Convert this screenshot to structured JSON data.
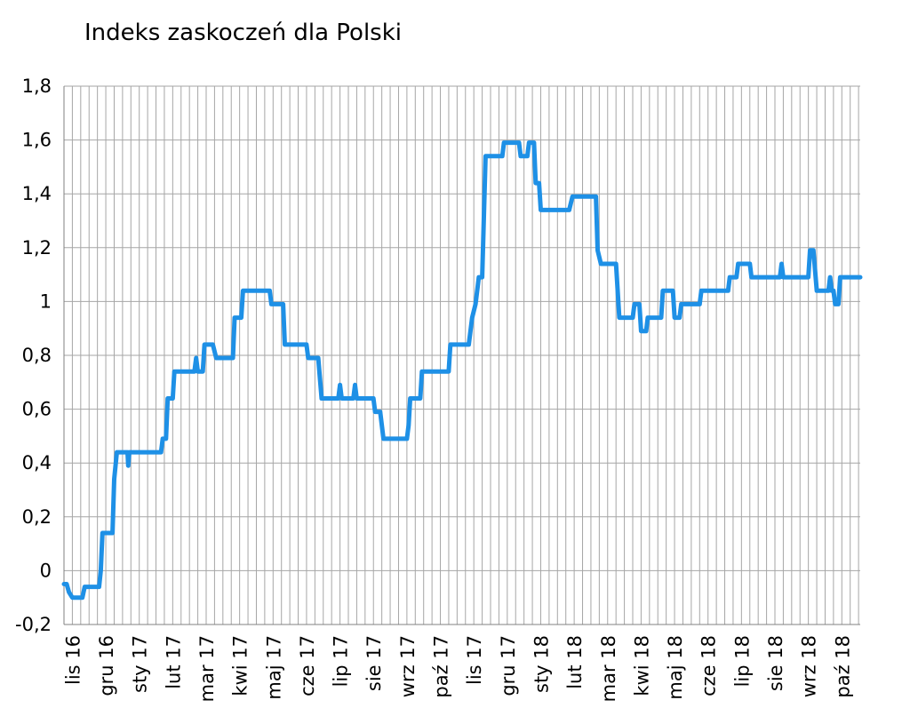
{
  "chart_data": {
    "type": "line",
    "title": "Indeks zaskoczeń dla Polski",
    "xlabel": "",
    "ylabel": "",
    "ylim": [
      -0.2,
      1.8
    ],
    "yticks": [
      -0.2,
      0,
      0.2,
      0.4,
      0.6,
      0.8,
      1,
      1.2,
      1.4,
      1.6,
      1.8
    ],
    "ytick_labels": [
      "-0,2",
      "0",
      "0,2",
      "0,4",
      "0,6",
      "0,8",
      "1",
      "1,2",
      "1,4",
      "1,6",
      "1,8"
    ],
    "x_labels": [
      "lis 16",
      "gru 16",
      "sty 17",
      "lut 17",
      "mar 17",
      "kwi 17",
      "maj 17",
      "cze 17",
      "lip 17",
      "sie 17",
      "wrz 17",
      "paź 17",
      "lis 17",
      "gru 17",
      "sty 18",
      "lut 18",
      "mar 18",
      "kwi 18",
      "maj 18",
      "cze 18",
      "lip 18",
      "sie 18",
      "wrz 18",
      "paź 18"
    ],
    "x_span_months": [
      0,
      23.8
    ],
    "grid": {
      "horizontal": true,
      "vertical": true,
      "vertical_per_month": 4
    },
    "line_color": "#1e90e6",
    "series": [
      {
        "name": "",
        "points": [
          [
            0.0,
            -0.05
          ],
          [
            0.08,
            -0.05
          ],
          [
            0.15,
            -0.08
          ],
          [
            0.25,
            -0.1
          ],
          [
            0.55,
            -0.1
          ],
          [
            0.62,
            -0.06
          ],
          [
            1.05,
            -0.06
          ],
          [
            1.1,
            0.0
          ],
          [
            1.15,
            0.14
          ],
          [
            1.45,
            0.14
          ],
          [
            1.5,
            0.34
          ],
          [
            1.58,
            0.44
          ],
          [
            1.9,
            0.44
          ],
          [
            1.92,
            0.39
          ],
          [
            1.95,
            0.44
          ],
          [
            2.9,
            0.44
          ],
          [
            2.95,
            0.49
          ],
          [
            3.05,
            0.49
          ],
          [
            3.1,
            0.64
          ],
          [
            3.25,
            0.64
          ],
          [
            3.3,
            0.74
          ],
          [
            3.9,
            0.74
          ],
          [
            3.95,
            0.79
          ],
          [
            4.0,
            0.74
          ],
          [
            4.15,
            0.74
          ],
          [
            4.2,
            0.84
          ],
          [
            4.45,
            0.84
          ],
          [
            4.55,
            0.79
          ],
          [
            5.05,
            0.79
          ],
          [
            5.1,
            0.94
          ],
          [
            5.3,
            0.94
          ],
          [
            5.35,
            1.04
          ],
          [
            6.15,
            1.04
          ],
          [
            6.2,
            0.99
          ],
          [
            6.55,
            0.99
          ],
          [
            6.6,
            0.84
          ],
          [
            7.25,
            0.84
          ],
          [
            7.3,
            0.79
          ],
          [
            7.6,
            0.79
          ],
          [
            7.7,
            0.64
          ],
          [
            8.2,
            0.64
          ],
          [
            8.25,
            0.69
          ],
          [
            8.3,
            0.64
          ],
          [
            8.65,
            0.64
          ],
          [
            8.7,
            0.69
          ],
          [
            8.75,
            0.64
          ],
          [
            9.25,
            0.64
          ],
          [
            9.3,
            0.59
          ],
          [
            9.45,
            0.59
          ],
          [
            9.55,
            0.49
          ],
          [
            10.25,
            0.49
          ],
          [
            10.3,
            0.54
          ],
          [
            10.35,
            0.64
          ],
          [
            10.65,
            0.64
          ],
          [
            10.7,
            0.74
          ],
          [
            11.5,
            0.74
          ],
          [
            11.55,
            0.84
          ],
          [
            12.1,
            0.84
          ],
          [
            12.15,
            0.89
          ],
          [
            12.2,
            0.94
          ],
          [
            12.3,
            0.99
          ],
          [
            12.4,
            1.09
          ],
          [
            12.5,
            1.09
          ],
          [
            12.6,
            1.54
          ],
          [
            13.1,
            1.54
          ],
          [
            13.15,
            1.59
          ],
          [
            13.6,
            1.59
          ],
          [
            13.65,
            1.54
          ],
          [
            13.85,
            1.54
          ],
          [
            13.9,
            1.59
          ],
          [
            14.05,
            1.59
          ],
          [
            14.1,
            1.44
          ],
          [
            14.2,
            1.44
          ],
          [
            14.25,
            1.34
          ],
          [
            15.1,
            1.34
          ],
          [
            15.2,
            1.39
          ],
          [
            15.9,
            1.39
          ],
          [
            15.95,
            1.19
          ],
          [
            16.05,
            1.14
          ],
          [
            16.5,
            1.14
          ],
          [
            16.6,
            0.94
          ],
          [
            17.0,
            0.94
          ],
          [
            17.05,
            0.99
          ],
          [
            17.2,
            0.99
          ],
          [
            17.25,
            0.89
          ],
          [
            17.4,
            0.89
          ],
          [
            17.45,
            0.94
          ],
          [
            17.85,
            0.94
          ],
          [
            17.9,
            1.04
          ],
          [
            18.2,
            1.04
          ],
          [
            18.25,
            0.94
          ],
          [
            18.4,
            0.94
          ],
          [
            18.45,
            0.99
          ],
          [
            19.0,
            0.99
          ],
          [
            19.05,
            1.04
          ],
          [
            19.85,
            1.04
          ],
          [
            19.9,
            1.09
          ],
          [
            20.1,
            1.09
          ],
          [
            20.15,
            1.14
          ],
          [
            20.5,
            1.14
          ],
          [
            20.55,
            1.09
          ],
          [
            21.4,
            1.09
          ],
          [
            21.45,
            1.14
          ],
          [
            21.5,
            1.09
          ],
          [
            22.25,
            1.09
          ],
          [
            22.3,
            1.19
          ],
          [
            22.4,
            1.19
          ],
          [
            22.5,
            1.04
          ],
          [
            22.85,
            1.04
          ],
          [
            22.9,
            1.09
          ],
          [
            22.95,
            1.04
          ],
          [
            23.0,
            1.04
          ],
          [
            23.05,
            0.99
          ],
          [
            23.15,
            0.99
          ],
          [
            23.2,
            1.09
          ],
          [
            23.8,
            1.09
          ]
        ]
      }
    ]
  }
}
